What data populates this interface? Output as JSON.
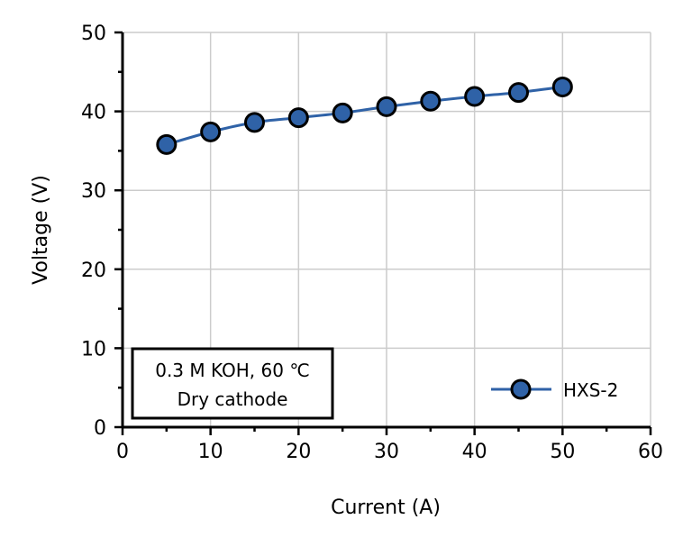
{
  "chart_data": {
    "type": "line",
    "xlabel": "Current (A)",
    "ylabel": "Voltage (V)",
    "xlim": [
      0,
      60
    ],
    "ylim": [
      0,
      50
    ],
    "xticks": [
      0,
      10,
      20,
      30,
      40,
      50,
      60
    ],
    "yticks": [
      0,
      10,
      20,
      30,
      40,
      50
    ],
    "grid": true,
    "legend_position": "bottom-right",
    "annotation": [
      "0.3 M KOH, 60 ℃",
      "Dry cathode"
    ],
    "series": [
      {
        "name": "HXS-2",
        "color": "#2f62a7",
        "marker_fill": "#2f62a7",
        "marker_edge": "#000000",
        "x": [
          5,
          10,
          15,
          20,
          25,
          30,
          35,
          40,
          45,
          50
        ],
        "y": [
          35.8,
          37.4,
          38.6,
          39.2,
          39.8,
          40.6,
          41.3,
          41.9,
          42.4,
          43.1
        ]
      }
    ]
  }
}
